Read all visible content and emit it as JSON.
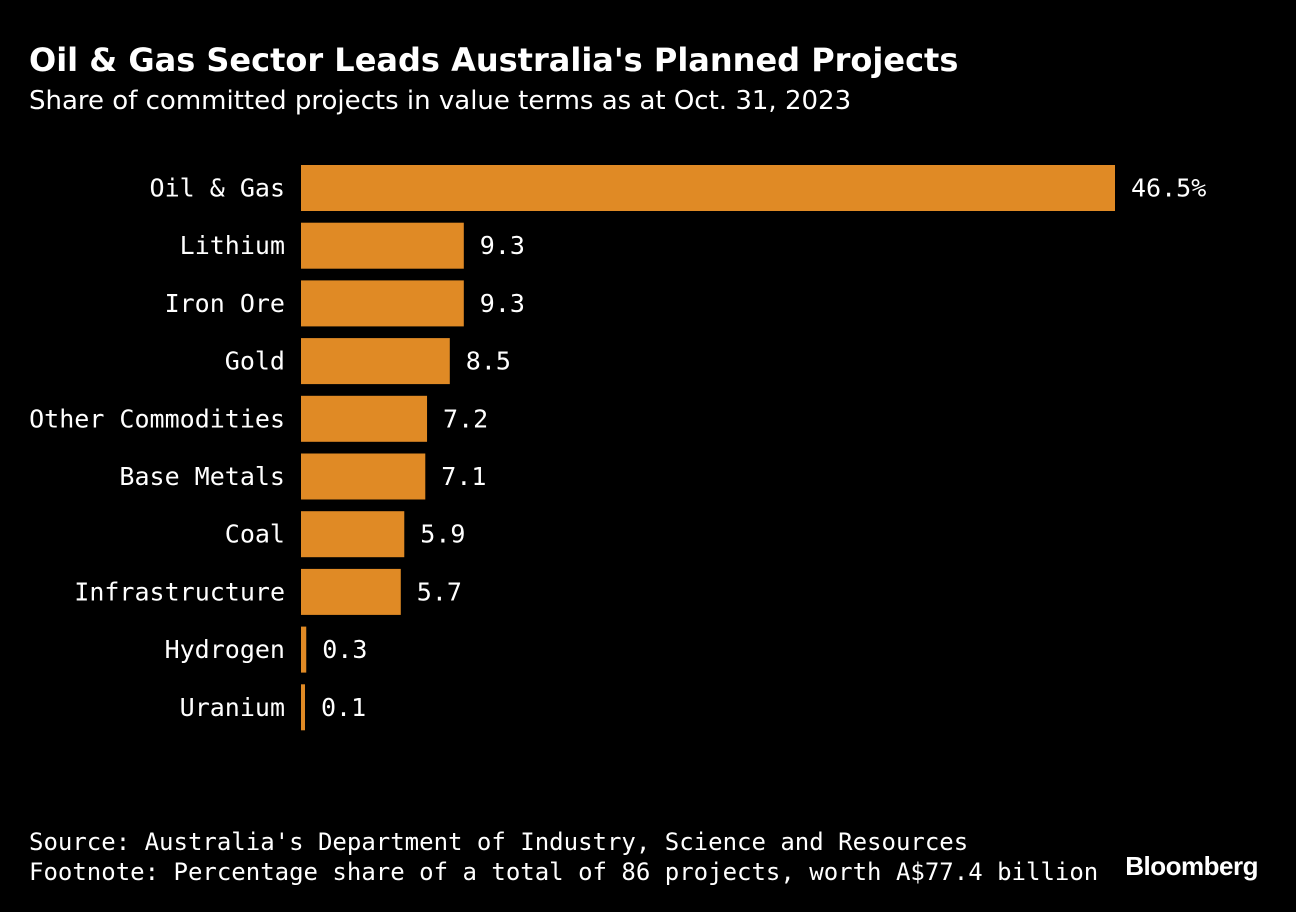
{
  "header": {
    "title": "Oil & Gas Sector Leads Australia's Planned Projects",
    "subtitle": "Share of committed projects in value terms as at Oct. 31, 2023"
  },
  "chart_data": {
    "type": "bar",
    "orientation": "horizontal",
    "categories": [
      "Oil & Gas",
      "Lithium",
      "Iron Ore",
      "Gold",
      "Other Commodities",
      "Base Metals",
      "Coal",
      "Infrastructure",
      "Hydrogen",
      "Uranium"
    ],
    "values": [
      46.5,
      9.3,
      9.3,
      8.5,
      7.2,
      7.1,
      5.9,
      5.7,
      0.3,
      0.1
    ],
    "value_labels": [
      "46.5%",
      "9.3",
      "9.3",
      "8.5",
      "7.2",
      "7.1",
      "5.9",
      "5.7",
      "0.3",
      "0.1"
    ],
    "xlim": [
      0,
      46.5
    ],
    "grid": false,
    "bar_color": "#E08A25"
  },
  "footer": {
    "source": "Source: Australia's Department of Industry, Science and Resources",
    "footnote": "Footnote: Percentage share of a total of 86 projects, worth A$77.4 billion"
  },
  "brand": "Bloomberg",
  "colors": {
    "background": "#000000",
    "text": "#FFFFFF",
    "bar": "#E08A25"
  }
}
